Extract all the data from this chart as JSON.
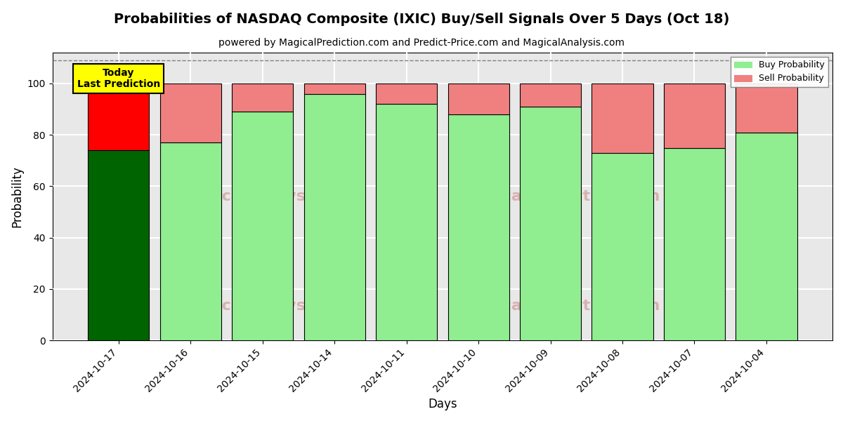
{
  "title": "Probabilities of NASDAQ Composite (IXIC) Buy/Sell Signals Over 5 Days (Oct 18)",
  "subtitle": "powered by MagicalPrediction.com and Predict-Price.com and MagicalAnalysis.com",
  "xlabel": "Days",
  "ylabel": "Probability",
  "categories": [
    "2024-10-17",
    "2024-10-16",
    "2024-10-15",
    "2024-10-14",
    "2024-10-11",
    "2024-10-10",
    "2024-10-09",
    "2024-10-08",
    "2024-10-07",
    "2024-10-04"
  ],
  "buy_values": [
    74,
    77,
    89,
    96,
    92,
    88,
    91,
    73,
    75,
    81
  ],
  "sell_values": [
    26,
    23,
    11,
    4,
    8,
    12,
    9,
    27,
    25,
    19
  ],
  "buy_colors": [
    "#006400",
    "#90EE90",
    "#90EE90",
    "#90EE90",
    "#90EE90",
    "#90EE90",
    "#90EE90",
    "#90EE90",
    "#90EE90",
    "#90EE90"
  ],
  "sell_colors": [
    "#FF0000",
    "#F08080",
    "#F08080",
    "#F08080",
    "#F08080",
    "#F08080",
    "#F08080",
    "#F08080",
    "#F08080",
    "#F08080"
  ],
  "legend_buy_color": "#90EE90",
  "legend_sell_color": "#F08080",
  "today_box_color": "#FFFF00",
  "today_label": "Today\nLast Prediction",
  "ylim": [
    0,
    112
  ],
  "yticks": [
    0,
    20,
    40,
    60,
    80,
    100
  ],
  "dashed_line_y": 109,
  "background_color": "#FFFFFF",
  "plot_bg_color": "#E8E8E8",
  "grid_color": "#FFFFFF",
  "title_fontsize": 14,
  "subtitle_fontsize": 10,
  "axis_label_fontsize": 12,
  "bar_width": 0.85
}
